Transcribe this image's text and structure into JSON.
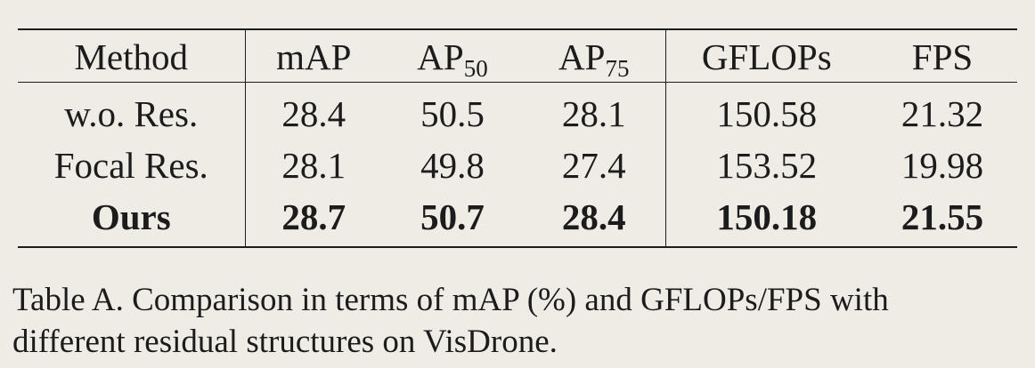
{
  "table": {
    "headers": {
      "method": "Method",
      "map": "mAP",
      "ap50_base": "AP",
      "ap50_sub": "50",
      "ap75_base": "AP",
      "ap75_sub": "75",
      "gflops": "GFLOPs",
      "fps": "FPS"
    },
    "rows": [
      {
        "method": "w.o. Res.",
        "map": "28.4",
        "ap50": "50.5",
        "ap75": "28.1",
        "gflops": "150.58",
        "fps": "21.32",
        "bold": false
      },
      {
        "method": "Focal Res.",
        "map": "28.1",
        "ap50": "49.8",
        "ap75": "27.4",
        "gflops": "153.52",
        "fps": "19.98",
        "bold": false
      },
      {
        "method": "Ours",
        "map": "28.7",
        "ap50": "50.7",
        "ap75": "28.4",
        "gflops": "150.18",
        "fps": "21.55",
        "bold": true
      }
    ]
  },
  "caption": {
    "line1": "Table A. Comparison in terms of mAP (%) and GFLOPs/FPS with",
    "line2": "different residual structures on VisDrone."
  }
}
